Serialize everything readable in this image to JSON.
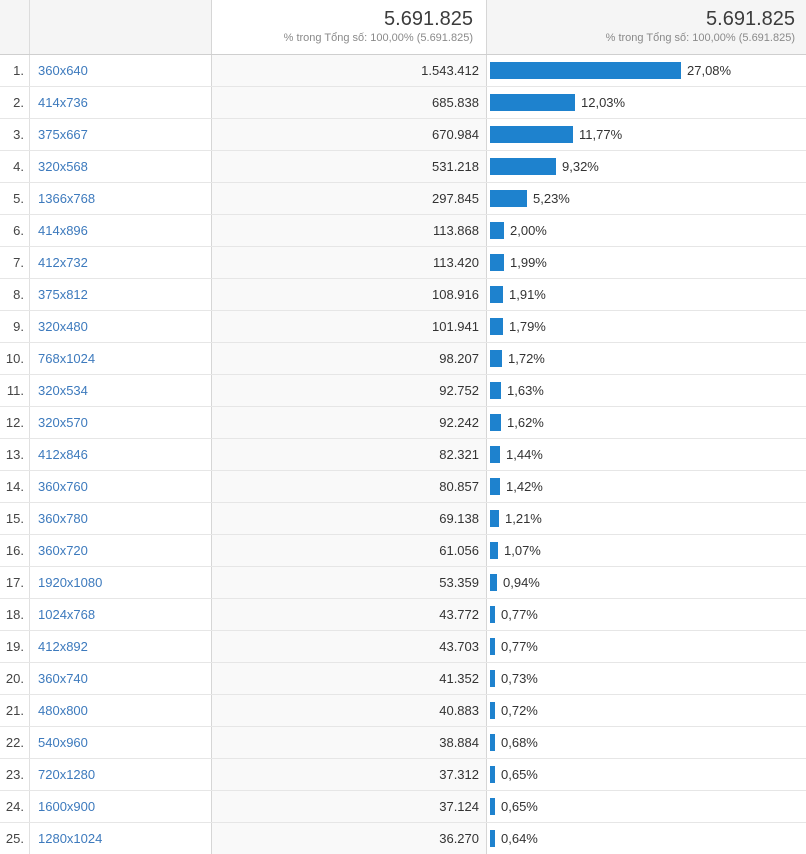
{
  "app": "analytics-screen-resolution-report",
  "table": {
    "header": {
      "sessions_total": "5.691.825",
      "sessions_subtitle": "% trong Tổng số: 100,00% (5.691.825)",
      "percent_total": "5.691.825",
      "percent_subtitle": "% trong Tổng số: 100,00% (5.691.825)"
    },
    "rows": [
      {
        "rank": "1.",
        "resolution": "360x640",
        "sessions": "1.543.412",
        "percent_display": "27,08%",
        "percent_value": 27.08
      },
      {
        "rank": "2.",
        "resolution": "414x736",
        "sessions": "685.838",
        "percent_display": "12,03%",
        "percent_value": 12.03
      },
      {
        "rank": "3.",
        "resolution": "375x667",
        "sessions": "670.984",
        "percent_display": "11,77%",
        "percent_value": 11.77
      },
      {
        "rank": "4.",
        "resolution": "320x568",
        "sessions": "531.218",
        "percent_display": "9,32%",
        "percent_value": 9.32
      },
      {
        "rank": "5.",
        "resolution": "1366x768",
        "sessions": "297.845",
        "percent_display": "5,23%",
        "percent_value": 5.23
      },
      {
        "rank": "6.",
        "resolution": "414x896",
        "sessions": "113.868",
        "percent_display": "2,00%",
        "percent_value": 2.0
      },
      {
        "rank": "7.",
        "resolution": "412x732",
        "sessions": "113.420",
        "percent_display": "1,99%",
        "percent_value": 1.99
      },
      {
        "rank": "8.",
        "resolution": "375x812",
        "sessions": "108.916",
        "percent_display": "1,91%",
        "percent_value": 1.91
      },
      {
        "rank": "9.",
        "resolution": "320x480",
        "sessions": "101.941",
        "percent_display": "1,79%",
        "percent_value": 1.79
      },
      {
        "rank": "10.",
        "resolution": "768x1024",
        "sessions": "98.207",
        "percent_display": "1,72%",
        "percent_value": 1.72
      },
      {
        "rank": "11.",
        "resolution": "320x534",
        "sessions": "92.752",
        "percent_display": "1,63%",
        "percent_value": 1.63
      },
      {
        "rank": "12.",
        "resolution": "320x570",
        "sessions": "92.242",
        "percent_display": "1,62%",
        "percent_value": 1.62
      },
      {
        "rank": "13.",
        "resolution": "412x846",
        "sessions": "82.321",
        "percent_display": "1,44%",
        "percent_value": 1.44
      },
      {
        "rank": "14.",
        "resolution": "360x760",
        "sessions": "80.857",
        "percent_display": "1,42%",
        "percent_value": 1.42
      },
      {
        "rank": "15.",
        "resolution": "360x780",
        "sessions": "69.138",
        "percent_display": "1,21%",
        "percent_value": 1.21
      },
      {
        "rank": "16.",
        "resolution": "360x720",
        "sessions": "61.056",
        "percent_display": "1,07%",
        "percent_value": 1.07
      },
      {
        "rank": "17.",
        "resolution": "1920x1080",
        "sessions": "53.359",
        "percent_display": "0,94%",
        "percent_value": 0.94
      },
      {
        "rank": "18.",
        "resolution": "1024x768",
        "sessions": "43.772",
        "percent_display": "0,77%",
        "percent_value": 0.77
      },
      {
        "rank": "19.",
        "resolution": "412x892",
        "sessions": "43.703",
        "percent_display": "0,77%",
        "percent_value": 0.77
      },
      {
        "rank": "20.",
        "resolution": "360x740",
        "sessions": "41.352",
        "percent_display": "0,73%",
        "percent_value": 0.73
      },
      {
        "rank": "21.",
        "resolution": "480x800",
        "sessions": "40.883",
        "percent_display": "0,72%",
        "percent_value": 0.72
      },
      {
        "rank": "22.",
        "resolution": "540x960",
        "sessions": "38.884",
        "percent_display": "0,68%",
        "percent_value": 0.68
      },
      {
        "rank": "23.",
        "resolution": "720x1280",
        "sessions": "37.312",
        "percent_display": "0,65%",
        "percent_value": 0.65
      },
      {
        "rank": "24.",
        "resolution": "1600x900",
        "sessions": "37.124",
        "percent_display": "0,65%",
        "percent_value": 0.65
      },
      {
        "rank": "25.",
        "resolution": "1280x1024",
        "sessions": "36.270",
        "percent_display": "0,64%",
        "percent_value": 0.64
      }
    ]
  },
  "colors": {
    "bar": "#1e82ce",
    "link": "#3d7abd",
    "header_bg": "#f5f5f5",
    "metric_col_bg": "#f9f9f9",
    "col_border": "#d6d6d6",
    "row_border": "#e6e6e6"
  }
}
